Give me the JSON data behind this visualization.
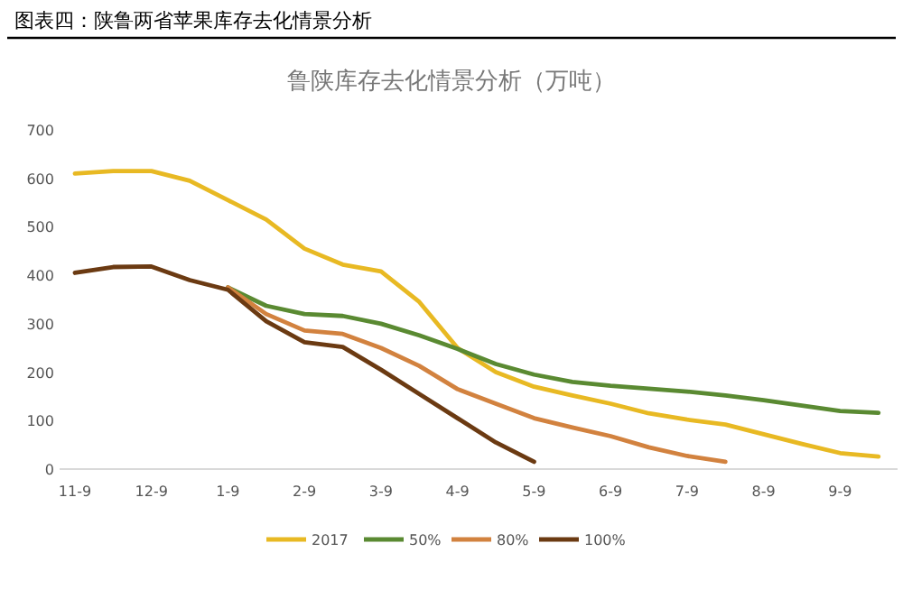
{
  "chart_data": {
    "type": "line",
    "title": "图表四：陕鲁两省苹果库存去化情景分析",
    "subtitle": "鲁陕库存去化情景分析（万吨）",
    "categories": [
      "11-9",
      null,
      "12-9",
      null,
      "1-9",
      null,
      "2-9",
      null,
      "3-9",
      null,
      "4-9",
      null,
      "5-9",
      null,
      "6-9",
      null,
      "7-9",
      null,
      "8-9",
      null,
      "9-9",
      null
    ],
    "ylim": [
      0,
      700
    ],
    "yticks": [
      0,
      100,
      200,
      300,
      400,
      500,
      600,
      700
    ],
    "grid": false,
    "legend": "bottom",
    "marker": "none",
    "line_style": "solid",
    "series": [
      {
        "name": "2017",
        "color": "#e8b923",
        "values": [
          610,
          615,
          615,
          595,
          555,
          515,
          455,
          422,
          408,
          345,
          250,
          200,
          170,
          152,
          135,
          115,
          102,
          92,
          72,
          52,
          33,
          26
        ]
      },
      {
        "name": "50%",
        "color": "#5a8a32",
        "values": [
          null,
          null,
          null,
          null,
          375,
          337,
          320,
          316,
          300,
          276,
          248,
          217,
          195,
          180,
          172,
          166,
          160,
          152,
          142,
          131,
          120,
          116
        ]
      },
      {
        "name": "80%",
        "color": "#d2823f",
        "values": [
          null,
          null,
          null,
          null,
          375,
          320,
          286,
          279,
          250,
          213,
          165,
          135,
          105,
          86,
          68,
          45,
          27,
          15,
          null,
          null,
          null,
          null
        ]
      },
      {
        "name": "100%",
        "color": "#6b3a12",
        "values": [
          405,
          417,
          418,
          390,
          370,
          305,
          262,
          252,
          205,
          155,
          105,
          55,
          15,
          null,
          null,
          null,
          null,
          null,
          null,
          null,
          null,
          null
        ]
      }
    ]
  }
}
